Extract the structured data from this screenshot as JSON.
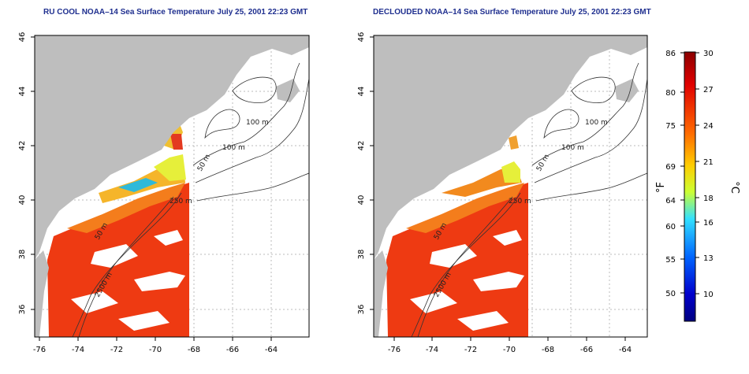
{
  "maps": [
    {
      "title": "RU COOL NOAA–14 Sea Surface Temperature July 25, 2001 22:23 GMT",
      "x_ticks": [
        "-76",
        "-74",
        "-72",
        "-70",
        "-68",
        "-66",
        "-64"
      ],
      "y_ticks": [
        "36",
        "38",
        "40",
        "42",
        "44",
        "46"
      ],
      "contour_labels": [
        "100 m",
        "100 m",
        "50 m",
        "250 m",
        "50 m",
        "2500 m"
      ]
    },
    {
      "title": "DECLOUDED NOAA–14 Sea Surface Temperature July 25, 2001 22:23 GMT",
      "x_ticks": [
        "-76",
        "-74",
        "-72",
        "-70",
        "-68",
        "-66",
        "-64"
      ],
      "y_ticks": [
        "36",
        "38",
        "40",
        "42",
        "44",
        "46"
      ],
      "contour_labels": [
        "100 m",
        "100 m",
        "50 m",
        "250 m",
        "50 m",
        "2500 m"
      ]
    }
  ],
  "colorbar": {
    "fahrenheit_label": "°F",
    "celsius_label": "°C",
    "fahrenheit_ticks": [
      "86",
      "80",
      "75",
      "69",
      "64",
      "60",
      "55",
      "50"
    ],
    "celsius_ticks": [
      "30",
      "27",
      "24",
      "21",
      "18",
      "16",
      "13",
      "10"
    ],
    "colors": [
      "#e00000",
      "#ff6a00",
      "#ffcc00",
      "#ccff33",
      "#33e0ff",
      "#0066ff",
      "#0000cc",
      "#000080"
    ]
  },
  "colors": {
    "land": "#bebebe",
    "sst_warm": "#ee3a12",
    "sst_orange": "#f47d1c",
    "title_blue": "#1f2f8f"
  }
}
